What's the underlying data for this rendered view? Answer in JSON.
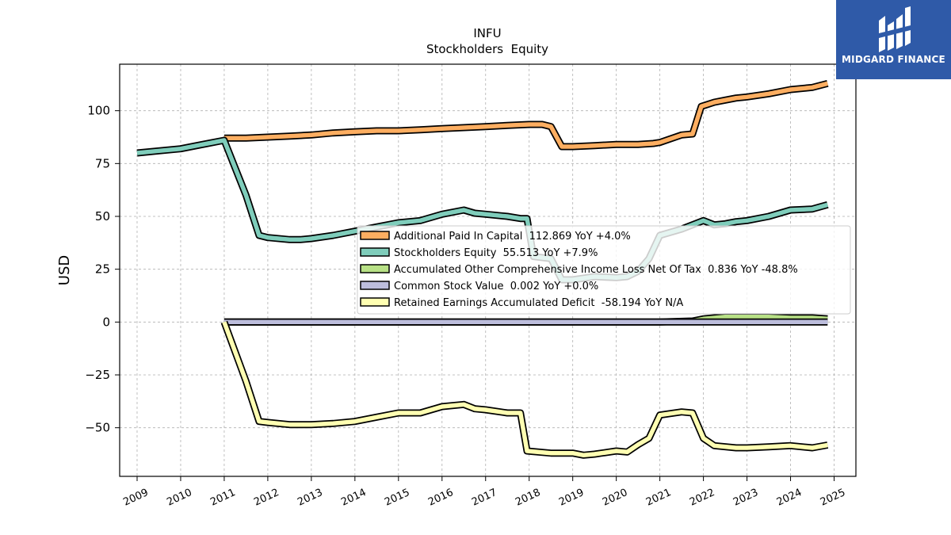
{
  "header": {
    "ticker": "INFU",
    "subtitle": "Stockholders  Equity"
  },
  "brand": {
    "name": "MIDGARD FINANCE",
    "color": "#2f5aa8",
    "icon": "midgard-logo-icon"
  },
  "chart_data": {
    "type": "line",
    "title": "INFU",
    "subtitle": "Stockholders  Equity",
    "xlabel": "",
    "ylabel": "USD",
    "xlim": [
      2008.6,
      2025.5
    ],
    "ylim": [
      -73,
      122
    ],
    "x_ticks": [
      2009,
      2010,
      2011,
      2012,
      2013,
      2014,
      2015,
      2016,
      2017,
      2018,
      2019,
      2020,
      2021,
      2022,
      2023,
      2024,
      2025
    ],
    "y_ticks": [
      100,
      75,
      50,
      25,
      0,
      -25,
      -50
    ],
    "y_tick_labels": [
      "100",
      "75",
      "50",
      "25",
      "0",
      "−25",
      "−50"
    ],
    "grid": true,
    "legend_position": "center-right",
    "series": [
      {
        "name": "Additional Paid In Capital",
        "legend": "Additional Paid In Capital  112.869 YoY +4.0%",
        "color": "#fdae61",
        "points": [
          [
            2011.0,
            87.0
          ],
          [
            2011.5,
            87.0
          ],
          [
            2012.0,
            87.5
          ],
          [
            2012.5,
            88.0
          ],
          [
            2013.0,
            88.5
          ],
          [
            2013.5,
            89.5
          ],
          [
            2014.0,
            90.0
          ],
          [
            2014.5,
            90.5
          ],
          [
            2015.0,
            90.5
          ],
          [
            2015.5,
            91.0
          ],
          [
            2016.0,
            91.5
          ],
          [
            2016.5,
            92.0
          ],
          [
            2017.0,
            92.5
          ],
          [
            2017.5,
            93.0
          ],
          [
            2018.0,
            93.5
          ],
          [
            2018.3,
            93.5
          ],
          [
            2018.5,
            92.5
          ],
          [
            2018.75,
            83.0
          ],
          [
            2019.0,
            83.0
          ],
          [
            2019.5,
            83.5
          ],
          [
            2020.0,
            84.0
          ],
          [
            2020.5,
            84.0
          ],
          [
            2020.85,
            84.5
          ],
          [
            2021.0,
            85.0
          ],
          [
            2021.5,
            88.5
          ],
          [
            2021.75,
            89.0
          ],
          [
            2021.95,
            102.0
          ],
          [
            2022.25,
            104.0
          ],
          [
            2022.5,
            105.0
          ],
          [
            2022.75,
            106.0
          ],
          [
            2023.0,
            106.5
          ],
          [
            2023.5,
            108.0
          ],
          [
            2024.0,
            110.0
          ],
          [
            2024.5,
            111.0
          ],
          [
            2024.85,
            112.9
          ]
        ]
      },
      {
        "name": "Stockholders Equity",
        "legend": "Stockholders Equity  55.513 YoY +7.9%",
        "color": "#7fcdbb",
        "points": [
          [
            2009.0,
            80.0
          ],
          [
            2009.5,
            81.0
          ],
          [
            2010.0,
            82.0
          ],
          [
            2010.5,
            84.0
          ],
          [
            2011.0,
            86.0
          ],
          [
            2011.5,
            60.0
          ],
          [
            2011.8,
            41.0
          ],
          [
            2012.0,
            40.0
          ],
          [
            2012.5,
            39.0
          ],
          [
            2012.75,
            39.0
          ],
          [
            2013.0,
            39.5
          ],
          [
            2013.5,
            41.0
          ],
          [
            2014.0,
            43.0
          ],
          [
            2014.5,
            45.0
          ],
          [
            2015.0,
            47.0
          ],
          [
            2015.5,
            48.0
          ],
          [
            2016.0,
            51.0
          ],
          [
            2016.5,
            53.0
          ],
          [
            2016.75,
            51.5
          ],
          [
            2017.0,
            51.0
          ],
          [
            2017.5,
            50.0
          ],
          [
            2017.8,
            49.0
          ],
          [
            2017.95,
            49.0
          ],
          [
            2018.1,
            31.0
          ],
          [
            2018.5,
            30.0
          ],
          [
            2018.75,
            20.0
          ],
          [
            2019.0,
            20.0
          ],
          [
            2019.5,
            21.5
          ],
          [
            2020.0,
            21.0
          ],
          [
            2020.25,
            21.5
          ],
          [
            2020.5,
            24.0
          ],
          [
            2020.75,
            30.0
          ],
          [
            2021.0,
            41.0
          ],
          [
            2021.5,
            44.0
          ],
          [
            2022.0,
            48.0
          ],
          [
            2022.25,
            46.0
          ],
          [
            2022.5,
            46.5
          ],
          [
            2022.75,
            47.5
          ],
          [
            2023.0,
            48.0
          ],
          [
            2023.5,
            50.0
          ],
          [
            2024.0,
            53.0
          ],
          [
            2024.5,
            53.5
          ],
          [
            2024.85,
            55.5
          ]
        ]
      },
      {
        "name": "Accumulated Other Comprehensive Income Loss Net Of Tax",
        "legend": "Accumulated Other Comprehensive Income Loss Net Of Tax  0.836 YoY -48.8%",
        "color": "#b8e186",
        "points": [
          [
            2011.0,
            0.0
          ],
          [
            2012.0,
            0.0
          ],
          [
            2013.0,
            0.0
          ],
          [
            2014.0,
            0.0
          ],
          [
            2015.0,
            0.0
          ],
          [
            2016.0,
            0.0
          ],
          [
            2017.0,
            0.0
          ],
          [
            2018.0,
            0.0
          ],
          [
            2019.0,
            0.0
          ],
          [
            2020.0,
            0.0
          ],
          [
            2021.0,
            0.0
          ],
          [
            2021.75,
            0.5
          ],
          [
            2022.0,
            1.5
          ],
          [
            2022.5,
            2.5
          ],
          [
            2023.0,
            2.5
          ],
          [
            2023.5,
            2.5
          ],
          [
            2024.0,
            2.0
          ],
          [
            2024.5,
            2.0
          ],
          [
            2024.85,
            1.5
          ]
        ]
      },
      {
        "name": "Common Stock Value",
        "legend": "Common Stock Value  0.002 YoY +0.0%",
        "color": "#bcbddc",
        "points": [
          [
            2011.0,
            0.0
          ],
          [
            2024.85,
            0.0
          ]
        ]
      },
      {
        "name": "Retained Earnings Accumulated Deficit",
        "legend": "Retained Earnings Accumulated Deficit  -58.194 YoY N/A",
        "color": "#ffffb2",
        "points": [
          [
            2011.0,
            0.0
          ],
          [
            2011.5,
            -28.0
          ],
          [
            2011.8,
            -47.0
          ],
          [
            2012.0,
            -47.5
          ],
          [
            2012.5,
            -48.5
          ],
          [
            2013.0,
            -48.5
          ],
          [
            2013.5,
            -48.0
          ],
          [
            2014.0,
            -47.0
          ],
          [
            2014.5,
            -45.0
          ],
          [
            2015.0,
            -43.0
          ],
          [
            2015.5,
            -43.0
          ],
          [
            2016.0,
            -40.0
          ],
          [
            2016.5,
            -39.0
          ],
          [
            2016.75,
            -41.0
          ],
          [
            2017.0,
            -41.5
          ],
          [
            2017.5,
            -43.0
          ],
          [
            2017.8,
            -43.0
          ],
          [
            2017.95,
            -61.0
          ],
          [
            2018.5,
            -62.0
          ],
          [
            2019.0,
            -62.0
          ],
          [
            2019.25,
            -63.0
          ],
          [
            2019.5,
            -62.5
          ],
          [
            2020.0,
            -61.0
          ],
          [
            2020.25,
            -61.5
          ],
          [
            2020.5,
            -58.0
          ],
          [
            2020.75,
            -55.0
          ],
          [
            2021.0,
            -44.0
          ],
          [
            2021.5,
            -42.5
          ],
          [
            2021.75,
            -43.0
          ],
          [
            2022.0,
            -55.0
          ],
          [
            2022.25,
            -58.5
          ],
          [
            2022.75,
            -59.5
          ],
          [
            2023.0,
            -59.5
          ],
          [
            2023.5,
            -59.0
          ],
          [
            2024.0,
            -58.5
          ],
          [
            2024.5,
            -59.5
          ],
          [
            2024.85,
            -58.2
          ]
        ]
      }
    ]
  }
}
